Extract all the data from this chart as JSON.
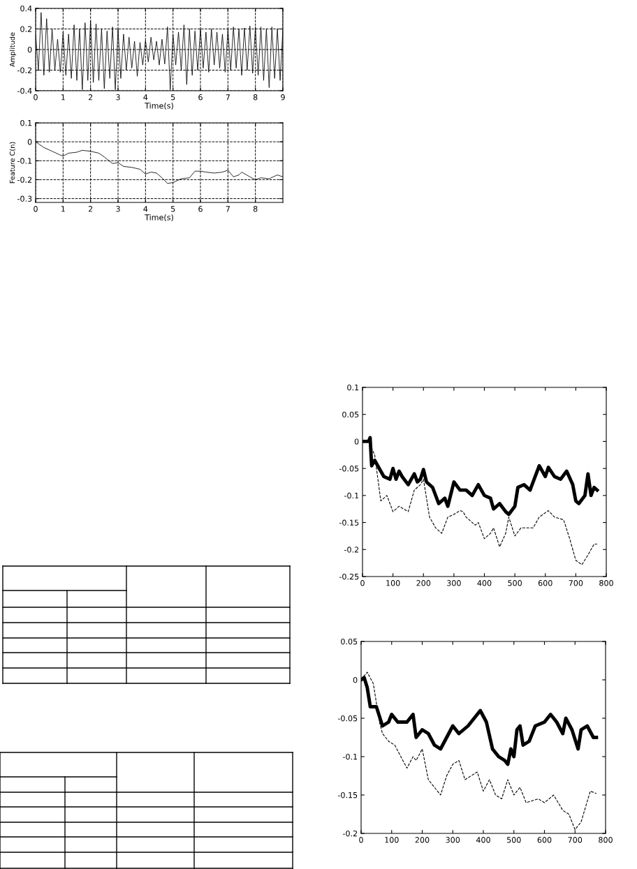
{
  "chart_data": [
    {
      "type": "line",
      "xlabel": "Time(s)",
      "ylabel": "Amplitude",
      "xlim": [
        0,
        9
      ],
      "ylim": [
        -0.4,
        0.4
      ],
      "xticks": [
        0,
        1,
        2,
        3,
        4,
        5,
        6,
        7,
        8,
        9
      ],
      "yticks": [
        -0.4,
        -0.2,
        0,
        0.2,
        0.4
      ],
      "grid": true,
      "series": [
        {
          "color": "#000000",
          "line_style": "solid",
          "x": [
            0.0,
            0.1,
            0.2,
            0.3,
            0.4,
            0.5,
            0.6,
            0.7,
            0.8,
            0.9,
            1.0,
            1.1,
            1.2,
            1.3,
            1.4,
            1.5,
            1.6,
            1.7,
            1.8,
            1.9,
            2.0,
            2.1,
            2.2,
            2.3,
            2.4,
            2.5,
            2.6,
            2.7,
            2.8,
            2.9,
            3.0,
            3.1,
            3.2,
            3.3,
            3.4,
            3.5,
            3.6,
            3.7,
            3.8,
            3.9,
            4.0,
            4.1,
            4.2,
            4.3,
            4.4,
            4.5,
            4.6,
            4.7,
            4.8,
            4.9,
            5.0,
            5.1,
            5.2,
            5.3,
            5.4,
            5.5,
            5.6,
            5.7,
            5.8,
            5.9,
            6.0,
            6.1,
            6.2,
            6.3,
            6.4,
            6.5,
            6.6,
            6.7,
            6.8,
            6.9,
            7.0,
            7.1,
            7.2,
            7.3,
            7.4,
            7.5,
            7.6,
            7.7,
            7.8,
            7.9,
            8.0,
            8.1,
            8.2,
            8.3,
            8.4,
            8.5,
            8.6,
            8.7,
            8.8,
            8.9,
            9.0
          ],
          "values": [
            0.15,
            -0.2,
            0.36,
            -0.25,
            0.3,
            -0.22,
            0.2,
            -0.2,
            0.1,
            -0.22,
            0.17,
            -0.25,
            0.15,
            -0.28,
            0.24,
            -0.3,
            0.2,
            -0.39,
            0.26,
            -0.3,
            0.28,
            -0.32,
            0.25,
            -0.3,
            0.2,
            -0.38,
            0.18,
            -0.28,
            0.22,
            -0.39,
            0.2,
            -0.28,
            0.15,
            -0.2,
            0.12,
            -0.18,
            0.08,
            -0.26,
            0.07,
            -0.15,
            0.09,
            -0.12,
            0.12,
            -0.1,
            0.08,
            -0.15,
            0.1,
            -0.14,
            0.22,
            -0.39,
            0.15,
            -0.15,
            0.17,
            -0.2,
            0.24,
            -0.34,
            0.2,
            -0.25,
            0.18,
            -0.2,
            0.2,
            -0.18,
            0.17,
            -0.22,
            0.2,
            -0.15,
            0.17,
            -0.18,
            0.15,
            -0.22,
            0.2,
            -0.2,
            0.22,
            -0.18,
            0.2,
            -0.25,
            0.21,
            -0.2,
            0.23,
            -0.23,
            0.22,
            -0.25,
            0.22,
            -0.3,
            0.2,
            -0.37,
            0.22,
            -0.28,
            0.2,
            -0.3,
            0.2
          ]
        }
      ]
    },
    {
      "type": "line",
      "xlabel": "Time(s)",
      "ylabel": "Feature C(n)",
      "xlim": [
        0,
        9
      ],
      "ylim": [
        -0.32,
        0.1
      ],
      "xticks": [
        0,
        1,
        2,
        3,
        4,
        5,
        6,
        7,
        8
      ],
      "yticks": [
        -0.3,
        -0.2,
        -0.1,
        0,
        0.1
      ],
      "grid": true,
      "series": [
        {
          "color": "#000000",
          "line_style": "solid",
          "x": [
            0,
            0.3,
            0.6,
            0.9,
            1.0,
            1.2,
            1.5,
            1.7,
            2.0,
            2.3,
            2.5,
            2.8,
            3.0,
            3.2,
            3.5,
            3.8,
            4.0,
            4.2,
            4.4,
            4.6,
            4.8,
            5.0,
            5.3,
            5.6,
            5.8,
            6.0,
            6.2,
            6.5,
            6.8,
            7.0,
            7.2,
            7.4,
            7.5,
            7.8,
            8.0,
            8.2,
            8.5,
            8.8,
            9.0
          ],
          "values": [
            0,
            -0.03,
            -0.05,
            -0.07,
            -0.075,
            -0.06,
            -0.055,
            -0.045,
            -0.05,
            -0.06,
            -0.08,
            -0.115,
            -0.11,
            -0.13,
            -0.135,
            -0.145,
            -0.17,
            -0.16,
            -0.165,
            -0.19,
            -0.22,
            -0.215,
            -0.195,
            -0.19,
            -0.155,
            -0.155,
            -0.16,
            -0.165,
            -0.16,
            -0.15,
            -0.185,
            -0.175,
            -0.16,
            -0.185,
            -0.2,
            -0.19,
            -0.195,
            -0.175,
            -0.185
          ]
        }
      ]
    },
    {
      "type": "line",
      "xlim": [
        0,
        800
      ],
      "ylim": [
        -0.25,
        0.1
      ],
      "xticks": [
        0,
        100,
        200,
        300,
        400,
        500,
        600,
        700,
        800
      ],
      "yticks": [
        -0.25,
        -0.2,
        -0.15,
        -0.1,
        -0.05,
        0,
        0.05,
        0.1
      ],
      "grid": false,
      "series": [
        {
          "color": "#000000",
          "line_style": "solid",
          "x": [
            0,
            20,
            25,
            30,
            40,
            50,
            70,
            90,
            100,
            110,
            120,
            130,
            150,
            170,
            180,
            190,
            200,
            210,
            230,
            250,
            270,
            280,
            300,
            320,
            340,
            360,
            380,
            400,
            420,
            430,
            450,
            470,
            480,
            500,
            510,
            530,
            550,
            570,
            580,
            600,
            610,
            630,
            650,
            670,
            690,
            700,
            710,
            730,
            740,
            750,
            760,
            770
          ],
          "values": [
            0,
            0,
            0.007,
            -0.045,
            -0.035,
            -0.045,
            -0.065,
            -0.07,
            -0.05,
            -0.07,
            -0.055,
            -0.065,
            -0.08,
            -0.06,
            -0.075,
            -0.07,
            -0.052,
            -0.075,
            -0.085,
            -0.115,
            -0.105,
            -0.12,
            -0.075,
            -0.09,
            -0.09,
            -0.1,
            -0.08,
            -0.1,
            -0.105,
            -0.125,
            -0.115,
            -0.13,
            -0.135,
            -0.12,
            -0.085,
            -0.08,
            -0.09,
            -0.06,
            -0.045,
            -0.065,
            -0.048,
            -0.065,
            -0.07,
            -0.055,
            -0.08,
            -0.11,
            -0.115,
            -0.1,
            -0.06,
            -0.1,
            -0.085,
            -0.09
          ]
        },
        {
          "color": "#000000",
          "line_style": "dashed",
          "x": [
            0,
            20,
            40,
            60,
            80,
            100,
            120,
            150,
            170,
            190,
            200,
            220,
            240,
            260,
            280,
            300,
            320,
            330,
            340,
            370,
            380,
            400,
            420,
            430,
            450,
            470,
            480,
            500,
            520,
            560,
            580,
            610,
            630,
            660,
            680,
            700,
            720,
            740,
            760,
            770
          ],
          "values": [
            0,
            0,
            -0.025,
            -0.11,
            -0.1,
            -0.13,
            -0.12,
            -0.13,
            -0.09,
            -0.08,
            -0.07,
            -0.14,
            -0.16,
            -0.17,
            -0.14,
            -0.135,
            -0.128,
            -0.13,
            -0.14,
            -0.155,
            -0.15,
            -0.18,
            -0.17,
            -0.16,
            -0.195,
            -0.17,
            -0.14,
            -0.175,
            -0.16,
            -0.16,
            -0.14,
            -0.128,
            -0.14,
            -0.145,
            -0.18,
            -0.22,
            -0.228,
            -0.21,
            -0.19,
            -0.19
          ]
        }
      ]
    },
    {
      "type": "line",
      "xlim": [
        0,
        800
      ],
      "ylim": [
        -0.2,
        0.05
      ],
      "xticks": [
        0,
        100,
        200,
        300,
        400,
        500,
        600,
        700,
        800
      ],
      "yticks": [
        -0.2,
        -0.15,
        -0.1,
        -0.05,
        0,
        0.05
      ],
      "grid": false,
      "series": [
        {
          "color": "#000000",
          "line_style": "solid",
          "x": [
            0,
            10,
            20,
            30,
            50,
            70,
            90,
            100,
            120,
            150,
            170,
            180,
            200,
            220,
            240,
            260,
            280,
            300,
            320,
            350,
            370,
            390,
            410,
            430,
            450,
            470,
            480,
            490,
            500,
            510,
            520,
            530,
            550,
            570,
            600,
            620,
            640,
            660,
            670,
            690,
            710,
            720,
            740,
            760,
            770
          ],
          "values": [
            0,
            0.003,
            -0.01,
            -0.035,
            -0.035,
            -0.06,
            -0.055,
            -0.045,
            -0.055,
            -0.055,
            -0.045,
            -0.075,
            -0.065,
            -0.07,
            -0.085,
            -0.09,
            -0.075,
            -0.06,
            -0.07,
            -0.06,
            -0.05,
            -0.04,
            -0.055,
            -0.09,
            -0.1,
            -0.105,
            -0.11,
            -0.09,
            -0.1,
            -0.065,
            -0.06,
            -0.085,
            -0.08,
            -0.06,
            -0.055,
            -0.045,
            -0.055,
            -0.07,
            -0.05,
            -0.065,
            -0.09,
            -0.065,
            -0.06,
            -0.075,
            -0.075
          ]
        },
        {
          "color": "#000000",
          "line_style": "dashed",
          "x": [
            0,
            20,
            40,
            60,
            70,
            90,
            110,
            130,
            150,
            170,
            180,
            200,
            220,
            240,
            260,
            280,
            300,
            320,
            340,
            360,
            380,
            400,
            420,
            440,
            460,
            480,
            500,
            520,
            540,
            580,
            600,
            630,
            660,
            680,
            700,
            720,
            750,
            770
          ],
          "values": [
            0,
            0.01,
            -0.005,
            -0.055,
            -0.07,
            -0.08,
            -0.085,
            -0.1,
            -0.115,
            -0.1,
            -0.105,
            -0.09,
            -0.13,
            -0.14,
            -0.15,
            -0.125,
            -0.11,
            -0.105,
            -0.13,
            -0.125,
            -0.12,
            -0.145,
            -0.13,
            -0.15,
            -0.155,
            -0.13,
            -0.15,
            -0.14,
            -0.16,
            -0.155,
            -0.16,
            -0.15,
            -0.17,
            -0.175,
            -0.195,
            -0.185,
            -0.145,
            -0.148
          ]
        }
      ]
    }
  ]
}
